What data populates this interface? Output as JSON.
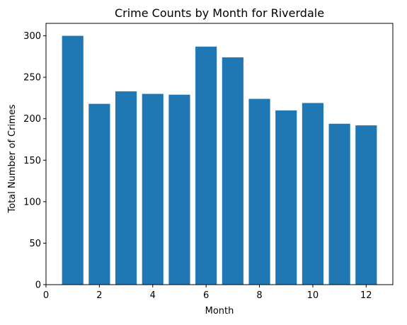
{
  "chart_data": {
    "type": "bar",
    "title": "Crime Counts by Month for Riverdale",
    "xlabel": "Month",
    "ylabel": "Total Number of Crimes",
    "x": [
      1,
      2,
      3,
      4,
      5,
      6,
      7,
      8,
      9,
      10,
      11,
      12
    ],
    "values": [
      300,
      218,
      233,
      230,
      229,
      287,
      274,
      224,
      210,
      219,
      194,
      192
    ],
    "xlim": [
      0,
      13
    ],
    "ylim": [
      0,
      315
    ],
    "xticks": [
      0,
      2,
      4,
      6,
      8,
      10,
      12
    ],
    "yticks": [
      0,
      50,
      100,
      150,
      200,
      250,
      300
    ],
    "bar_width": 0.8,
    "bar_color": "#1f77b4",
    "grid": false,
    "legend": "none"
  }
}
